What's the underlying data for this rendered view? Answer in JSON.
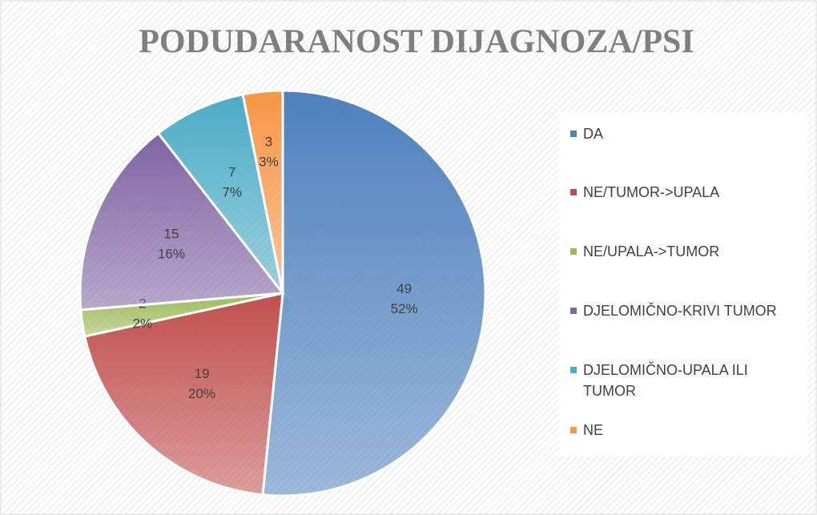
{
  "chart_data": {
    "type": "pie",
    "title": "PODUDARANOST DIJAGNOZA/PSI",
    "categories": [
      "DA",
      "NE/TUMOR->UPALA",
      "NE/UPALA->TUMOR",
      "DJELOMIČNO-KRIVI TUMOR",
      "DJELOMIČNO-UPALA ILI TUMOR",
      "NE"
    ],
    "values": [
      49,
      19,
      2,
      15,
      7,
      3
    ],
    "percent_labels": [
      "52%",
      "20%",
      "2%",
      "16%",
      "7%",
      "3%"
    ],
    "colors": [
      "#4f81bd",
      "#c0504d",
      "#9bbb59",
      "#8064a2",
      "#4bacc6",
      "#f79646"
    ],
    "legend": "right"
  }
}
